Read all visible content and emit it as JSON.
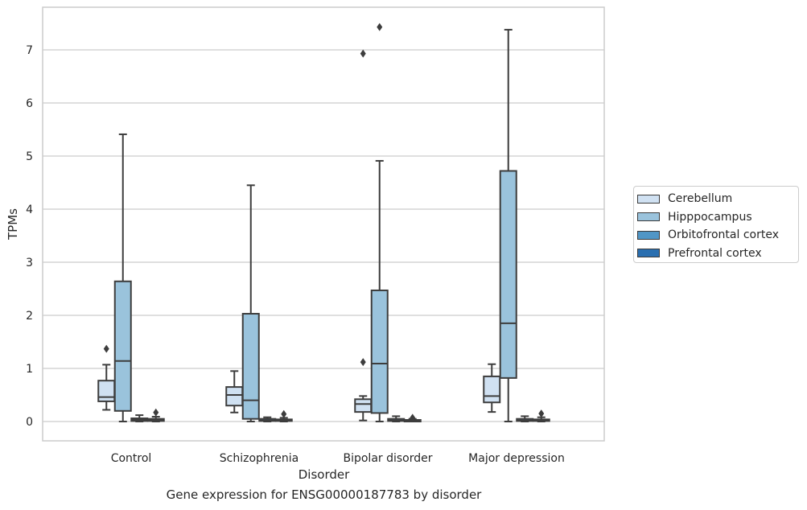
{
  "chart_data": {
    "type": "box",
    "caption": "Gene expression for ENSG00000187783 by disorder",
    "xlabel": "Disorder",
    "ylabel": "TPMs",
    "ylim": [
      -0.35,
      7.85
    ],
    "yticks": [
      "0",
      "1",
      "2",
      "3",
      "4",
      "5",
      "6",
      "7"
    ],
    "categories": [
      "Control",
      "Schizophrenia",
      "Bipolar disorder",
      "Major depression"
    ],
    "grid": "horizontal",
    "legend_position": "right",
    "series": [
      {
        "name": "Cerebellum",
        "color": "#d0e1f2",
        "boxes": [
          {
            "whisker_low": 0.22,
            "q1": 0.38,
            "median": 0.46,
            "q3": 0.77,
            "whisker_high": 1.07,
            "outliers": [
              1.37
            ]
          },
          {
            "whisker_low": 0.17,
            "q1": 0.3,
            "median": 0.5,
            "q3": 0.65,
            "whisker_high": 0.95,
            "outliers": []
          },
          {
            "whisker_low": 0.02,
            "q1": 0.18,
            "median": 0.33,
            "q3": 0.42,
            "whisker_high": 0.48,
            "outliers": [
              1.12,
              6.93
            ]
          },
          {
            "whisker_low": 0.18,
            "q1": 0.36,
            "median": 0.48,
            "q3": 0.85,
            "whisker_high": 1.08,
            "outliers": []
          }
        ]
      },
      {
        "name": "Hipppocampus",
        "color": "#9ac3dc",
        "boxes": [
          {
            "whisker_low": 0.0,
            "q1": 0.2,
            "median": 1.14,
            "q3": 2.64,
            "whisker_high": 5.41,
            "outliers": []
          },
          {
            "whisker_low": 0.0,
            "q1": 0.05,
            "median": 0.4,
            "q3": 2.03,
            "whisker_high": 4.45,
            "outliers": []
          },
          {
            "whisker_low": 0.0,
            "q1": 0.16,
            "median": 1.09,
            "q3": 2.47,
            "whisker_high": 4.91,
            "outliers": [
              7.43
            ]
          },
          {
            "whisker_low": 0.0,
            "q1": 0.82,
            "median": 1.85,
            "q3": 4.72,
            "whisker_high": 7.38,
            "outliers": []
          }
        ]
      },
      {
        "name": "Orbitofrontal cortex",
        "color": "#5096c6",
        "boxes": [
          {
            "whisker_low": 0.0,
            "q1": 0.01,
            "median": 0.03,
            "q3": 0.06,
            "whisker_high": 0.12,
            "outliers": []
          },
          {
            "whisker_low": 0.0,
            "q1": 0.01,
            "median": 0.02,
            "q3": 0.05,
            "whisker_high": 0.08,
            "outliers": []
          },
          {
            "whisker_low": 0.0,
            "q1": 0.01,
            "median": 0.02,
            "q3": 0.05,
            "whisker_high": 0.1,
            "outliers": []
          },
          {
            "whisker_low": 0.0,
            "q1": 0.01,
            "median": 0.02,
            "q3": 0.05,
            "whisker_high": 0.1,
            "outliers": []
          }
        ]
      },
      {
        "name": "Prefrontal cortex",
        "color": "#2a6fb0",
        "boxes": [
          {
            "whisker_low": 0.0,
            "q1": 0.01,
            "median": 0.03,
            "q3": 0.05,
            "whisker_high": 0.09,
            "outliers": [
              0.17
            ]
          },
          {
            "whisker_low": 0.0,
            "q1": 0.01,
            "median": 0.02,
            "q3": 0.04,
            "whisker_high": 0.07,
            "outliers": [
              0.14
            ]
          },
          {
            "whisker_low": 0.0,
            "q1": 0.0,
            "median": 0.01,
            "q3": 0.03,
            "whisker_high": 0.05,
            "outliers": [
              0.07
            ]
          },
          {
            "whisker_low": 0.0,
            "q1": 0.01,
            "median": 0.02,
            "q3": 0.04,
            "whisker_high": 0.08,
            "outliers": [
              0.15
            ]
          }
        ]
      }
    ]
  }
}
